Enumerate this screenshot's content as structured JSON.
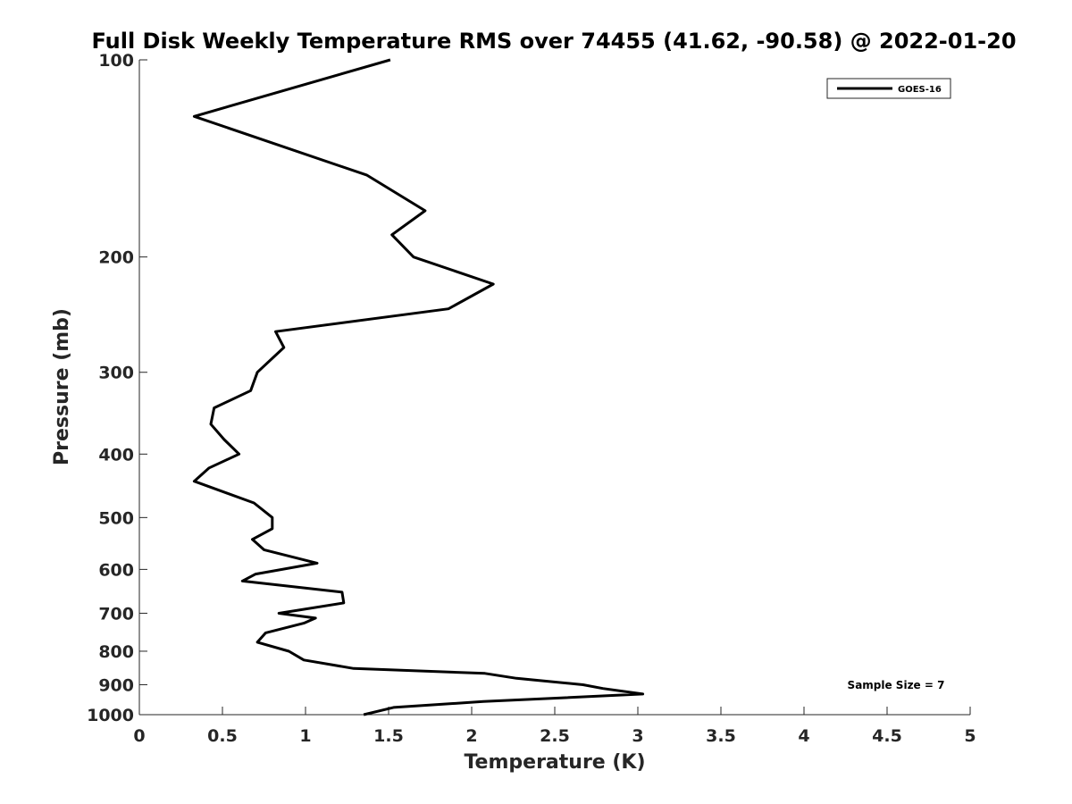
{
  "chart_data": {
    "type": "line",
    "title": "Full Disk Weekly Temperature RMS over 74455 (41.62, -90.58) @ 2022-01-20",
    "xlabel": "Temperature (K)",
    "ylabel": "Pressure (mb)",
    "xlim": [
      0,
      5
    ],
    "ylim": [
      100,
      1000
    ],
    "y_scale": "log",
    "y_inverted": true,
    "grid": false,
    "legend_position": "top-right",
    "x_ticks": [
      "0",
      "0.5",
      "1",
      "1.5",
      "2",
      "2.5",
      "3",
      "3.5",
      "4",
      "4.5",
      "5"
    ],
    "y_ticks": [
      "100",
      "200",
      "300",
      "400",
      "500",
      "600",
      "700",
      "800",
      "900",
      "1000"
    ],
    "annotation": "Sample Size = 7",
    "series": [
      {
        "name": "GOES-16",
        "color": "#000000",
        "x": [
          1.51,
          0.33,
          1.37,
          1.72,
          1.52,
          1.65,
          2.13,
          1.86,
          0.82,
          0.87,
          0.71,
          0.67,
          0.45,
          0.43,
          0.51,
          0.6,
          0.42,
          0.33,
          0.69,
          0.8,
          0.8,
          0.68,
          0.75,
          1.07,
          0.7,
          0.62,
          1.22,
          1.23,
          0.84,
          1.06,
          0.99,
          0.76,
          0.71,
          0.9,
          0.99,
          1.29,
          2.08,
          2.27,
          2.67,
          2.79,
          3.03,
          2.07,
          1.53,
          1.35
        ],
        "y": [
          100,
          122,
          150,
          170,
          185,
          200,
          220,
          240,
          260,
          275,
          300,
          320,
          340,
          360,
          380,
          400,
          420,
          440,
          475,
          500,
          520,
          540,
          560,
          587,
          610,
          625,
          650,
          675,
          700,
          712,
          725,
          750,
          775,
          800,
          825,
          850,
          865,
          880,
          900,
          912,
          930,
          955,
          975,
          1000
        ]
      }
    ]
  }
}
